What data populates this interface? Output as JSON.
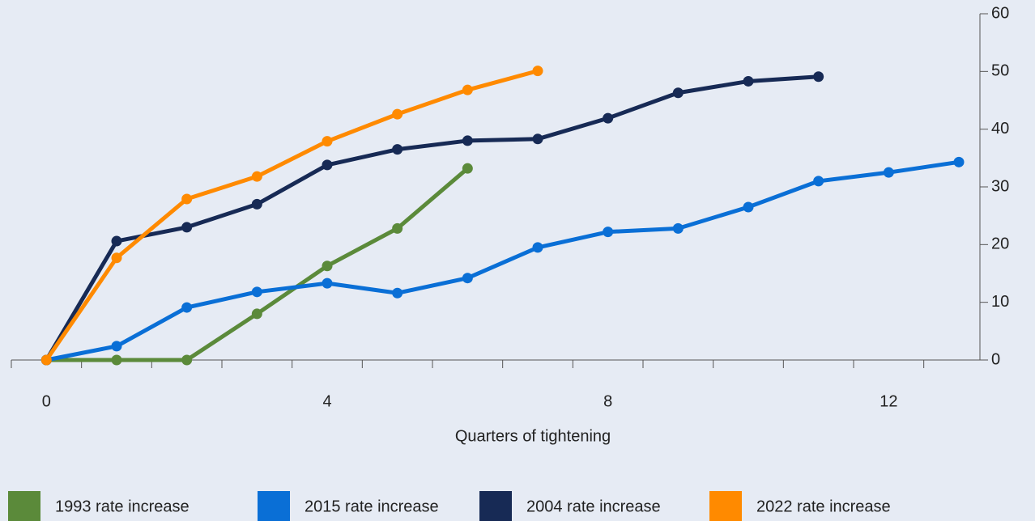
{
  "chart_data": {
    "type": "line",
    "xlabel": "Quarters of tightening",
    "x": [
      0,
      1,
      2,
      3,
      4,
      5,
      6,
      7,
      8,
      9,
      10,
      11,
      12,
      13
    ],
    "series": [
      {
        "name": "1993 rate increase",
        "color": "#5b8a3a",
        "values": [
          0,
          0,
          0,
          8,
          16.3,
          22.8,
          33.2,
          null,
          null,
          null,
          null,
          null,
          null,
          null
        ]
      },
      {
        "name": "2015 rate increase",
        "color": "#0a6fd6",
        "values": [
          0,
          2.4,
          9.1,
          11.8,
          13.3,
          11.6,
          14.2,
          19.5,
          22.2,
          22.8,
          26.5,
          31,
          32.5,
          34.3
        ]
      },
      {
        "name": "2004 rate increase",
        "color": "#172a55",
        "values": [
          0,
          20.6,
          23,
          27,
          33.8,
          36.5,
          38,
          38.3,
          41.9,
          46.3,
          48.3,
          49.1,
          null,
          null
        ]
      },
      {
        "name": "2022 rate increase",
        "color": "#ff8a00",
        "values": [
          0,
          17.7,
          27.9,
          31.8,
          37.9,
          42.6,
          46.8,
          50.1,
          null,
          null,
          null,
          null,
          null,
          null
        ]
      }
    ],
    "xlim": [
      -0.5,
      13.3
    ],
    "xticks": [
      0,
      4,
      8,
      12
    ],
    "xminorticks": [
      -0.5,
      0.5,
      1.5,
      2.5,
      3.5,
      4.5,
      5.5,
      6.5,
      7.5,
      8.5,
      9.5,
      10.5,
      11.5,
      12.5
    ],
    "ylim": [
      0,
      60
    ],
    "yticks": [
      0,
      10,
      20,
      30,
      40,
      50,
      60
    ],
    "yaxis_side": "right",
    "grid": false,
    "legend": "bottom"
  }
}
